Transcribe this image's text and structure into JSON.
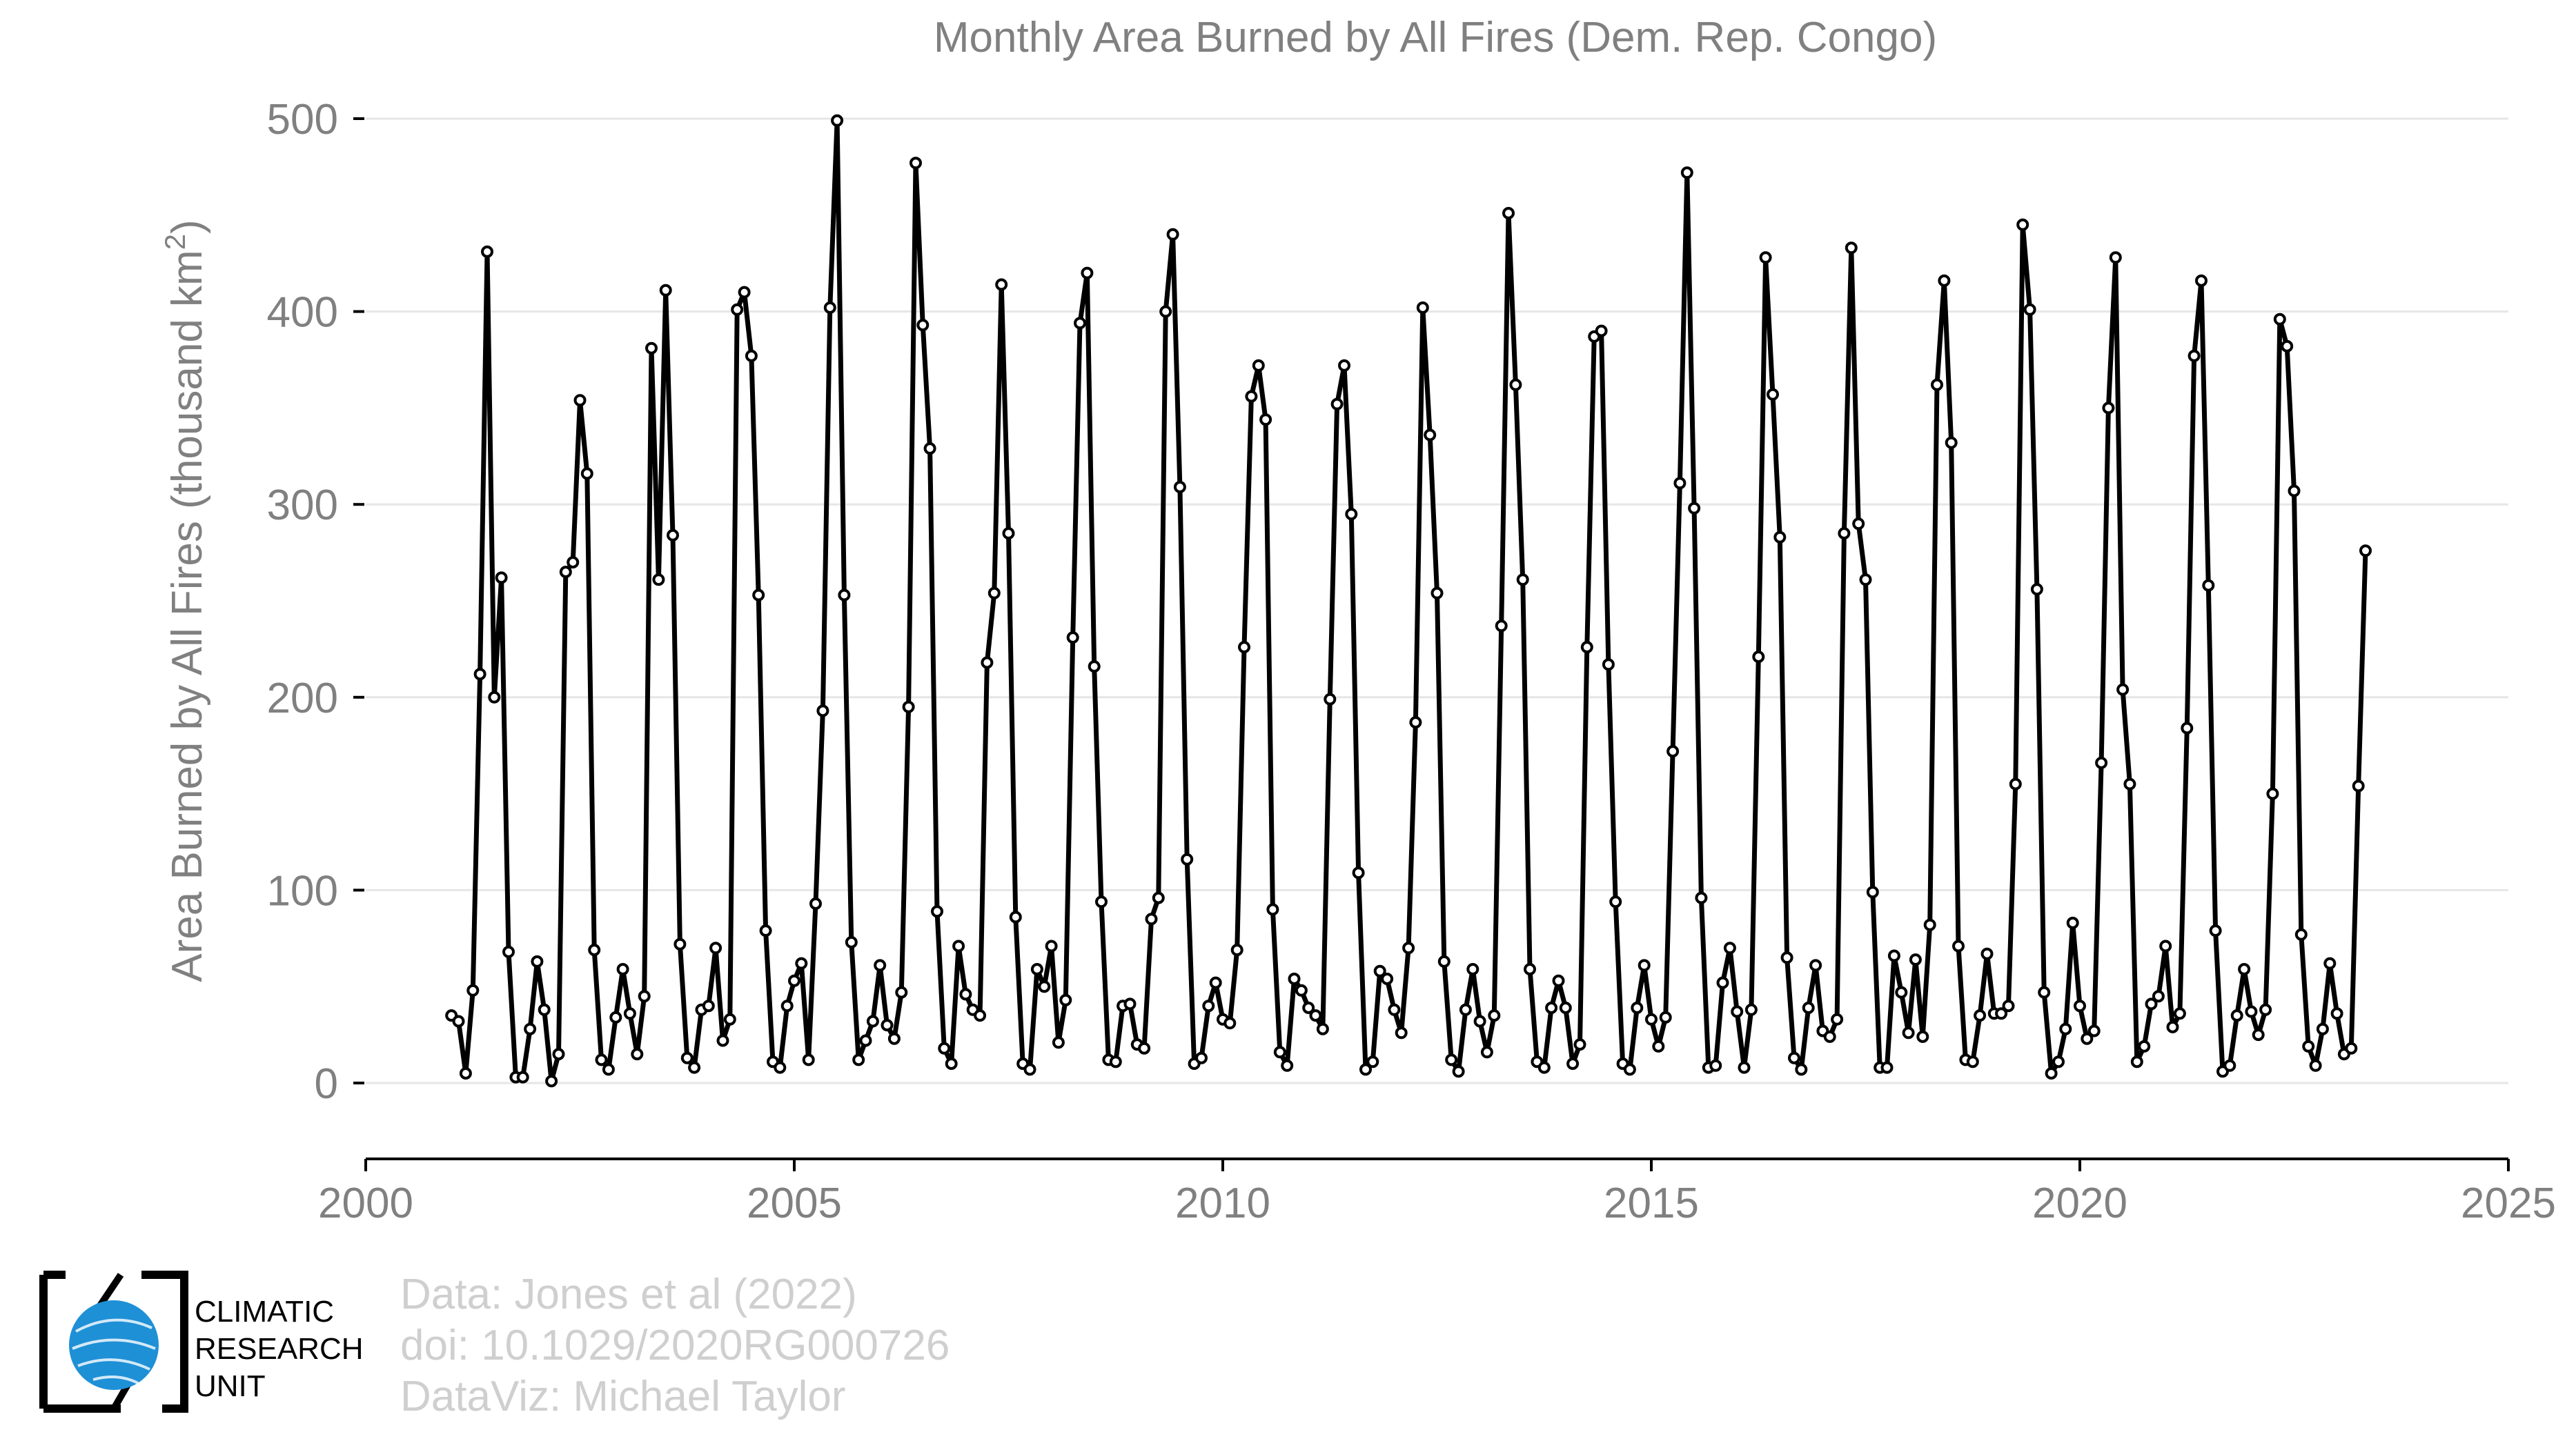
{
  "chart_data": {
    "type": "line",
    "title": "Monthly Area Burned by All Fires (Dem. Rep. Congo)",
    "ylabel_main": "Area Burned by All Fires (thousand km",
    "ylabel_sup": "2",
    "ylabel_close": ")",
    "xlim": [
      2000,
      2025
    ],
    "ylim": [
      -40,
      500
    ],
    "xticks": [
      2000,
      2005,
      2010,
      2015,
      2020,
      2025
    ],
    "xtick_labels": [
      "2000",
      "2005",
      "2010",
      "2015",
      "2020",
      "2025"
    ],
    "yticks": [
      0,
      100,
      200,
      300,
      400,
      500
    ],
    "ytick_labels": [
      "0",
      "100",
      "200",
      "300",
      "400",
      "500"
    ],
    "grid": true,
    "legend": "none",
    "series_color": "#000000",
    "start_year": 2001,
    "start_month": 1,
    "values": [
      35,
      32,
      5,
      48,
      212,
      431,
      200,
      262,
      68,
      3,
      3,
      28,
      63,
      38,
      1,
      15,
      265,
      270,
      354,
      316,
      69,
      12,
      7,
      34,
      59,
      36,
      15,
      45,
      381,
      261,
      411,
      284,
      72,
      13,
      8,
      38,
      40,
      70,
      22,
      33,
      401,
      410,
      377,
      253,
      79,
      11,
      8,
      40,
      53,
      62,
      12,
      93,
      193,
      402,
      499,
      253,
      73,
      12,
      22,
      32,
      61,
      30,
      23,
      47,
      195,
      477,
      393,
      329,
      89,
      18,
      10,
      71,
      46,
      38,
      35,
      218,
      254,
      414,
      285,
      86,
      10,
      7,
      59,
      50,
      71,
      21,
      43,
      231,
      394,
      420,
      216,
      94,
      12,
      11,
      40,
      41,
      20,
      18,
      85,
      96,
      400,
      440,
      309,
      116,
      10,
      13,
      40,
      52,
      33,
      31,
      69,
      226,
      356,
      372,
      344,
      90,
      16,
      9,
      54,
      48,
      39,
      35,
      28,
      199,
      352,
      372,
      295,
      109,
      7,
      11,
      58,
      54,
      38,
      26,
      70,
      187,
      402,
      336,
      254,
      63,
      12,
      6,
      38,
      59,
      32,
      16,
      35,
      237,
      451,
      362,
      261,
      59,
      11,
      8,
      39,
      53,
      39,
      10,
      20,
      226,
      387,
      390,
      217,
      94,
      10,
      7,
      39,
      61,
      33,
      19,
      34,
      172,
      311,
      472,
      298,
      96,
      8,
      9,
      52,
      70,
      37,
      8,
      38,
      221,
      428,
      357,
      283,
      65,
      13,
      7,
      39,
      61,
      27,
      24,
      33,
      285,
      433,
      290,
      261,
      99,
      8,
      8,
      66,
      47,
      26,
      64,
      24,
      82,
      362,
      416,
      332,
      71,
      12,
      11,
      35,
      67,
      36,
      36,
      40,
      155,
      445,
      401,
      256,
      47,
      5,
      11,
      28,
      83,
      40,
      23,
      27,
      166,
      350,
      428,
      204,
      155,
      11,
      19,
      41,
      45,
      71,
      29,
      36,
      184,
      377,
      416,
      258,
      79,
      6,
      9,
      35,
      59,
      37,
      25,
      38,
      150,
      396,
      382,
      307,
      77,
      19,
      9,
      28,
      62,
      36,
      15,
      18,
      154,
      276
    ]
  },
  "footer": {
    "line1": "Data: Jones et al (2022)",
    "line2": "doi: 10.1029/2020RG000726",
    "line3": "DataViz: Michael Taylor"
  },
  "logo": {
    "line1": "CLIMATIC",
    "line2": "RESEARCH",
    "line3": "UNIT",
    "accent": "#1e90d6"
  }
}
